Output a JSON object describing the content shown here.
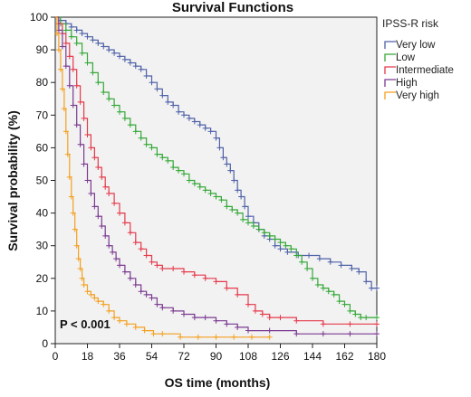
{
  "chart_data": {
    "type": "line",
    "title": "Survival Functions",
    "xlabel": "OS time (months)",
    "ylabel": "Survival probability (%)",
    "xlim": [
      0,
      180
    ],
    "ylim": [
      0,
      100
    ],
    "xticks": [
      "0",
      "18",
      "36",
      "54",
      "72",
      "90",
      "108",
      "126",
      "144",
      "162",
      "180"
    ],
    "yticks": [
      "0",
      "10",
      "20",
      "30",
      "40",
      "50",
      "60",
      "70",
      "80",
      "90",
      "100"
    ],
    "grid": false,
    "legend_title": "IPSS-R risk",
    "legend_position": "right",
    "annotation": "P < 0.001",
    "series": [
      {
        "name": "Very low",
        "color": "#4F62A8",
        "points": [
          [
            0,
            100
          ],
          [
            3,
            99
          ],
          [
            6,
            98
          ],
          [
            9,
            97
          ],
          [
            12,
            96
          ],
          [
            15,
            95
          ],
          [
            18,
            94
          ],
          [
            21,
            93
          ],
          [
            24,
            92
          ],
          [
            27,
            91
          ],
          [
            30,
            90
          ],
          [
            33,
            89
          ],
          [
            36,
            88
          ],
          [
            39,
            87
          ],
          [
            42,
            86
          ],
          [
            45,
            85
          ],
          [
            48,
            84
          ],
          [
            51,
            82
          ],
          [
            54,
            80
          ],
          [
            57,
            78
          ],
          [
            60,
            76
          ],
          [
            63,
            74
          ],
          [
            66,
            73
          ],
          [
            69,
            71
          ],
          [
            72,
            70
          ],
          [
            75,
            69
          ],
          [
            78,
            68
          ],
          [
            81,
            67
          ],
          [
            84,
            66
          ],
          [
            87,
            65
          ],
          [
            90,
            63
          ],
          [
            92,
            60
          ],
          [
            94,
            57
          ],
          [
            96,
            55
          ],
          [
            98,
            53
          ],
          [
            100,
            50
          ],
          [
            102,
            47
          ],
          [
            104,
            45
          ],
          [
            106,
            42
          ],
          [
            108,
            39
          ],
          [
            111,
            37
          ],
          [
            114,
            35
          ],
          [
            117,
            33
          ],
          [
            120,
            32
          ],
          [
            123,
            30
          ],
          [
            126,
            29
          ],
          [
            130,
            28
          ],
          [
            136,
            27
          ],
          [
            142,
            27
          ],
          [
            148,
            26
          ],
          [
            154,
            25
          ],
          [
            160,
            24
          ],
          [
            166,
            23
          ],
          [
            170,
            22
          ],
          [
            174,
            19
          ],
          [
            177,
            17
          ],
          [
            180,
            17
          ]
        ]
      },
      {
        "name": "Low",
        "color": "#35A838",
        "points": [
          [
            0,
            100
          ],
          [
            3,
            98
          ],
          [
            6,
            96
          ],
          [
            9,
            94
          ],
          [
            12,
            92
          ],
          [
            15,
            89
          ],
          [
            18,
            86
          ],
          [
            21,
            83
          ],
          [
            24,
            80
          ],
          [
            27,
            77
          ],
          [
            30,
            75
          ],
          [
            33,
            73
          ],
          [
            36,
            71
          ],
          [
            39,
            69
          ],
          [
            42,
            67
          ],
          [
            45,
            65
          ],
          [
            48,
            63
          ],
          [
            51,
            61
          ],
          [
            54,
            60
          ],
          [
            57,
            58
          ],
          [
            60,
            57
          ],
          [
            63,
            56
          ],
          [
            66,
            54
          ],
          [
            69,
            53
          ],
          [
            72,
            52
          ],
          [
            75,
            50
          ],
          [
            78,
            49
          ],
          [
            81,
            48
          ],
          [
            84,
            47
          ],
          [
            87,
            46
          ],
          [
            90,
            45
          ],
          [
            93,
            44
          ],
          [
            96,
            42
          ],
          [
            99,
            41
          ],
          [
            102,
            40
          ],
          [
            105,
            38
          ],
          [
            108,
            37
          ],
          [
            111,
            36
          ],
          [
            114,
            35
          ],
          [
            117,
            34
          ],
          [
            120,
            33
          ],
          [
            123,
            32
          ],
          [
            126,
            31
          ],
          [
            129,
            30
          ],
          [
            132,
            29
          ],
          [
            135,
            27
          ],
          [
            138,
            25
          ],
          [
            141,
            23
          ],
          [
            144,
            20
          ],
          [
            147,
            18
          ],
          [
            150,
            17
          ],
          [
            153,
            16
          ],
          [
            156,
            15
          ],
          [
            159,
            13
          ],
          [
            162,
            12
          ],
          [
            165,
            10
          ],
          [
            168,
            9
          ],
          [
            171,
            8
          ],
          [
            174,
            8
          ],
          [
            180,
            8
          ]
        ]
      },
      {
        "name": "Intermediate",
        "color": "#E53B4C",
        "points": [
          [
            0,
            100
          ],
          [
            2,
            98
          ],
          [
            4,
            95
          ],
          [
            6,
            92
          ],
          [
            8,
            88
          ],
          [
            10,
            84
          ],
          [
            12,
            79
          ],
          [
            14,
            74
          ],
          [
            16,
            69
          ],
          [
            18,
            64
          ],
          [
            20,
            60
          ],
          [
            22,
            57
          ],
          [
            24,
            54
          ],
          [
            26,
            51
          ],
          [
            28,
            48
          ],
          [
            30,
            46
          ],
          [
            33,
            43
          ],
          [
            36,
            40
          ],
          [
            39,
            37
          ],
          [
            42,
            34
          ],
          [
            45,
            31
          ],
          [
            48,
            29
          ],
          [
            51,
            27
          ],
          [
            54,
            25
          ],
          [
            57,
            24
          ],
          [
            60,
            23
          ],
          [
            66,
            23
          ],
          [
            72,
            22
          ],
          [
            78,
            21
          ],
          [
            84,
            20
          ],
          [
            90,
            19
          ],
          [
            96,
            17
          ],
          [
            102,
            15
          ],
          [
            108,
            12
          ],
          [
            112,
            10
          ],
          [
            116,
            9
          ],
          [
            120,
            8
          ],
          [
            126,
            8
          ],
          [
            135,
            7
          ],
          [
            150,
            6
          ],
          [
            165,
            6
          ],
          [
            180,
            6
          ]
        ]
      },
      {
        "name": "High",
        "color": "#7B3B91",
        "points": [
          [
            0,
            100
          ],
          [
            2,
            96
          ],
          [
            4,
            91
          ],
          [
            6,
            85
          ],
          [
            8,
            79
          ],
          [
            10,
            73
          ],
          [
            12,
            67
          ],
          [
            14,
            61
          ],
          [
            16,
            55
          ],
          [
            18,
            50
          ],
          [
            20,
            46
          ],
          [
            22,
            42
          ],
          [
            24,
            39
          ],
          [
            26,
            36
          ],
          [
            28,
            33
          ],
          [
            30,
            30
          ],
          [
            32,
            28
          ],
          [
            34,
            26
          ],
          [
            36,
            24
          ],
          [
            39,
            22
          ],
          [
            42,
            20
          ],
          [
            45,
            18
          ],
          [
            48,
            16
          ],
          [
            51,
            15
          ],
          [
            54,
            14
          ],
          [
            57,
            12
          ],
          [
            60,
            11
          ],
          [
            66,
            10
          ],
          [
            72,
            9
          ],
          [
            78,
            8
          ],
          [
            84,
            8
          ],
          [
            90,
            7
          ],
          [
            96,
            6
          ],
          [
            102,
            5
          ],
          [
            108,
            4
          ],
          [
            120,
            4
          ],
          [
            135,
            3
          ],
          [
            150,
            3
          ],
          [
            165,
            3
          ],
          [
            180,
            3
          ]
        ]
      },
      {
        "name": "Very high",
        "color": "#F4A020",
        "points": [
          [
            0,
            100
          ],
          [
            1,
            95
          ],
          [
            2,
            90
          ],
          [
            3,
            84
          ],
          [
            4,
            78
          ],
          [
            5,
            72
          ],
          [
            6,
            65
          ],
          [
            7,
            58
          ],
          [
            8,
            51
          ],
          [
            9,
            45
          ],
          [
            10,
            40
          ],
          [
            11,
            35
          ],
          [
            12,
            30
          ],
          [
            13,
            26
          ],
          [
            14,
            23
          ],
          [
            15,
            20
          ],
          [
            16,
            18
          ],
          [
            18,
            16
          ],
          [
            20,
            15
          ],
          [
            22,
            14
          ],
          [
            24,
            13
          ],
          [
            27,
            12
          ],
          [
            30,
            10
          ],
          [
            33,
            8
          ],
          [
            36,
            7
          ],
          [
            40,
            6
          ],
          [
            45,
            5
          ],
          [
            50,
            4
          ],
          [
            55,
            3
          ],
          [
            60,
            3
          ],
          [
            70,
            2
          ],
          [
            80,
            2
          ],
          [
            90,
            2
          ],
          [
            100,
            2
          ],
          [
            110,
            2
          ],
          [
            120,
            2
          ]
        ]
      }
    ]
  }
}
